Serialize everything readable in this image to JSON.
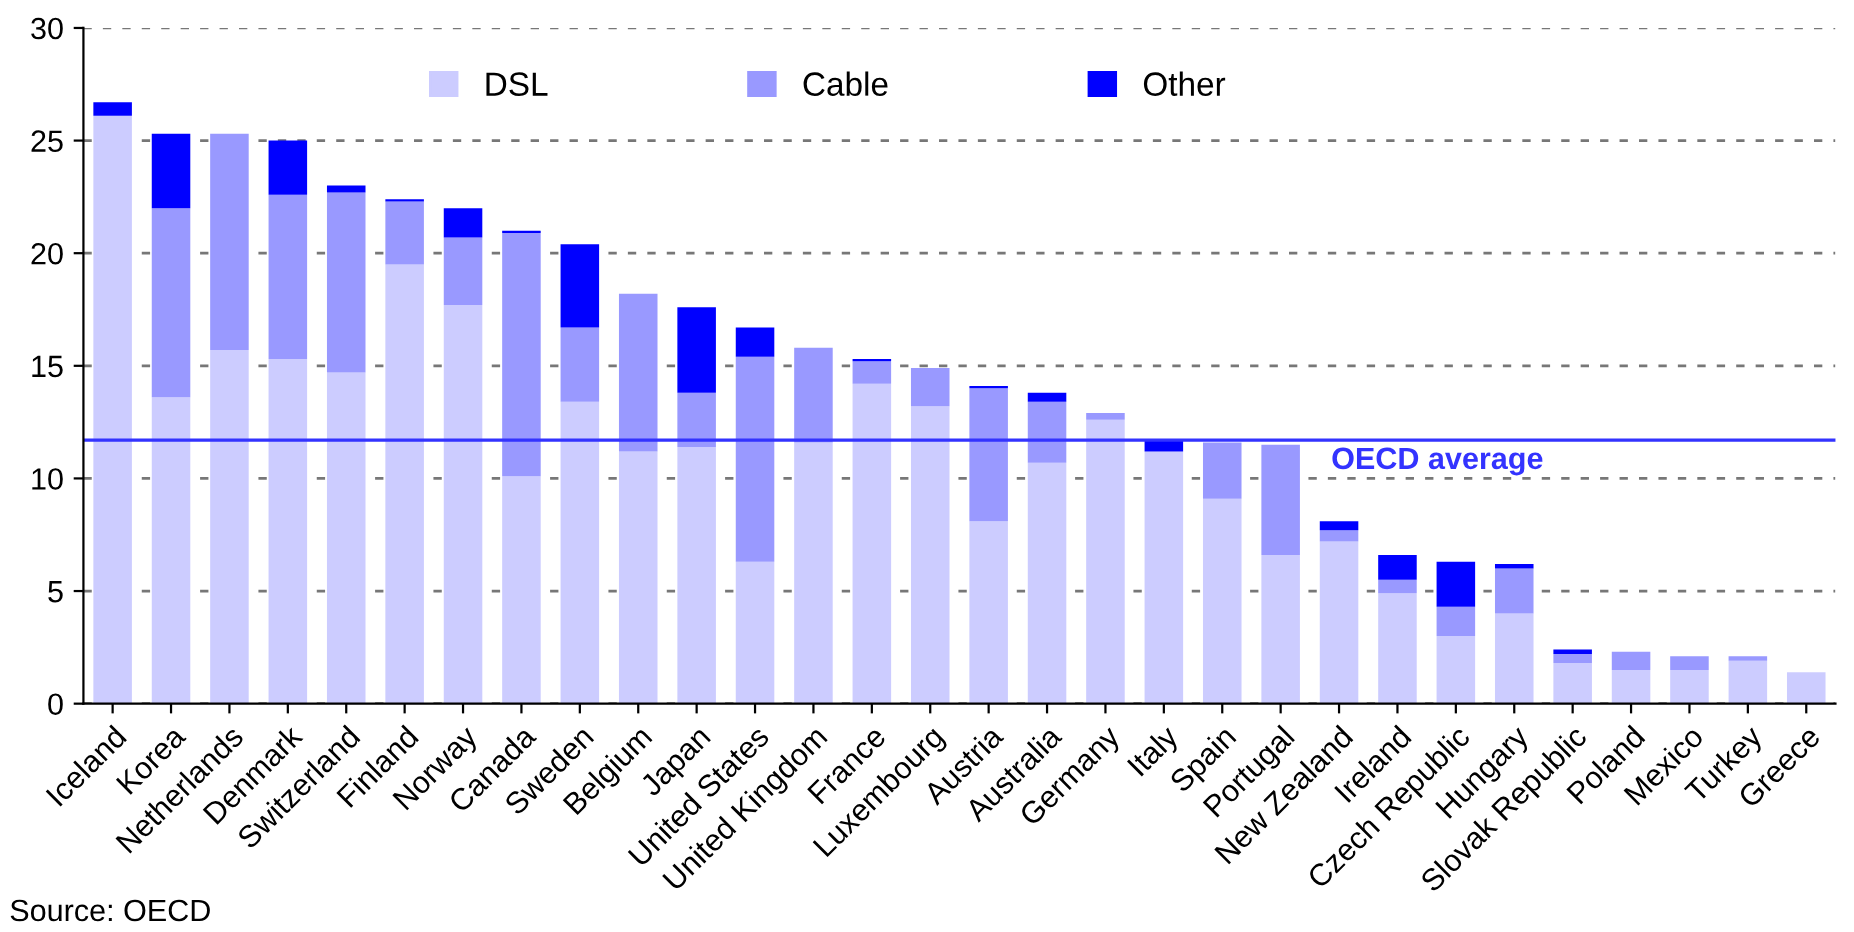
{
  "chart_data": {
    "type": "bar",
    "stacked": true,
    "categories": [
      "Iceland",
      "Korea",
      "Netherlands",
      "Denmark",
      "Switzerland",
      "Finland",
      "Norway",
      "Canada",
      "Sweden",
      "Belgium",
      "Japan",
      "United States",
      "United Kingdom",
      "France",
      "Luxembourg",
      "Austria",
      "Australia",
      "Germany",
      "Italy",
      "Spain",
      "Portugal",
      "New Zealand",
      "Ireland",
      "Czech Republic",
      "Hungary",
      "Slovak Republic",
      "Poland",
      "Mexico",
      "Turkey",
      "Greece"
    ],
    "series": [
      {
        "name": "DSL",
        "color": "#ccccff",
        "values": [
          26.1,
          13.6,
          15.7,
          15.3,
          14.7,
          19.5,
          17.7,
          10.1,
          13.4,
          11.2,
          11.4,
          6.3,
          11.6,
          14.2,
          13.2,
          8.1,
          10.7,
          12.6,
          11.2,
          9.1,
          6.6,
          7.2,
          4.9,
          3.0,
          4.0,
          1.8,
          1.5,
          1.5,
          1.9,
          1.4
        ]
      },
      {
        "name": "Cable",
        "color": "#9999ff",
        "values": [
          0,
          8.4,
          9.6,
          7.3,
          8.0,
          2.8,
          3.0,
          10.8,
          3.3,
          7.0,
          2.4,
          9.1,
          4.2,
          1.0,
          1.7,
          5.9,
          2.7,
          0.3,
          0,
          2.5,
          4.9,
          0.5,
          0.6,
          1.3,
          2.0,
          0.4,
          0.8,
          0.6,
          0.2,
          0
        ]
      },
      {
        "name": "Other",
        "color": "#0000ff",
        "values": [
          0.6,
          3.3,
          0,
          2.4,
          0.3,
          0.1,
          1.3,
          0.1,
          3.7,
          0,
          3.8,
          1.3,
          0,
          0.1,
          0,
          0.1,
          0.4,
          0,
          0.5,
          0,
          0,
          0.4,
          1.1,
          2.0,
          0.2,
          0.2,
          0,
          0,
          0,
          0
        ]
      }
    ],
    "ylim": [
      0,
      30
    ],
    "yticks": [
      0,
      5,
      10,
      15,
      20,
      25,
      30
    ],
    "grid": "y",
    "legend": "top",
    "ref_lines": [
      {
        "axis": "y",
        "value": 11.7,
        "label": "OECD average",
        "color": "#3333ff"
      }
    ],
    "annotations": [
      "Source: OECD"
    ]
  }
}
